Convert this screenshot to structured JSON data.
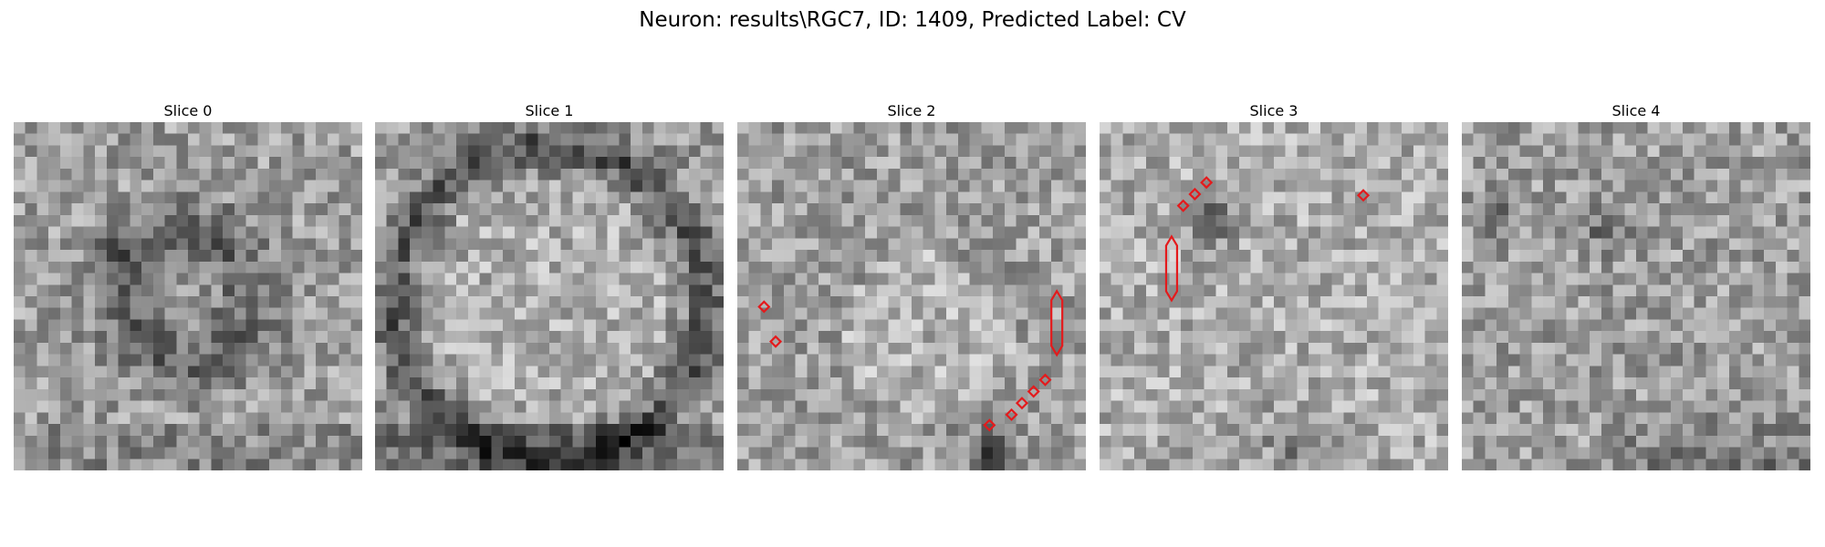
{
  "figure": {
    "title": "Neuron: results\\RGC7, ID: 1409, Predicted Label: CV"
  },
  "panels": [
    {
      "title": "Slice 0",
      "markers": []
    },
    {
      "title": "Slice 1",
      "markers": []
    },
    {
      "title": "Slice 2",
      "markers": [
        {
          "shape": "diamond",
          "col": 2.3,
          "row": 15.9
        },
        {
          "shape": "diamond",
          "col": 3.3,
          "row": 18.9
        },
        {
          "shape": "capsule",
          "col": 27.5,
          "row": 17.3,
          "len_rows": 5.5
        },
        {
          "shape": "diamond",
          "col": 26.5,
          "row": 22.2
        },
        {
          "shape": "diamond",
          "col": 25.5,
          "row": 23.2
        },
        {
          "shape": "diamond",
          "col": 24.5,
          "row": 24.2
        },
        {
          "shape": "diamond",
          "col": 23.6,
          "row": 25.2
        },
        {
          "shape": "diamond",
          "col": 21.7,
          "row": 26.1
        }
      ]
    },
    {
      "title": "Slice 3",
      "markers": [
        {
          "shape": "diamond",
          "col": 7.2,
          "row": 7.2
        },
        {
          "shape": "diamond",
          "col": 8.2,
          "row": 6.2
        },
        {
          "shape": "diamond",
          "col": 9.2,
          "row": 5.2
        },
        {
          "shape": "capsule",
          "col": 6.2,
          "row": 12.6,
          "len_rows": 5.5
        },
        {
          "shape": "diamond",
          "col": 22.7,
          "row": 6.3
        }
      ]
    },
    {
      "title": "Slice 4",
      "markers": []
    }
  ],
  "marker_color": "#e41a1c",
  "colormap": "gray"
}
